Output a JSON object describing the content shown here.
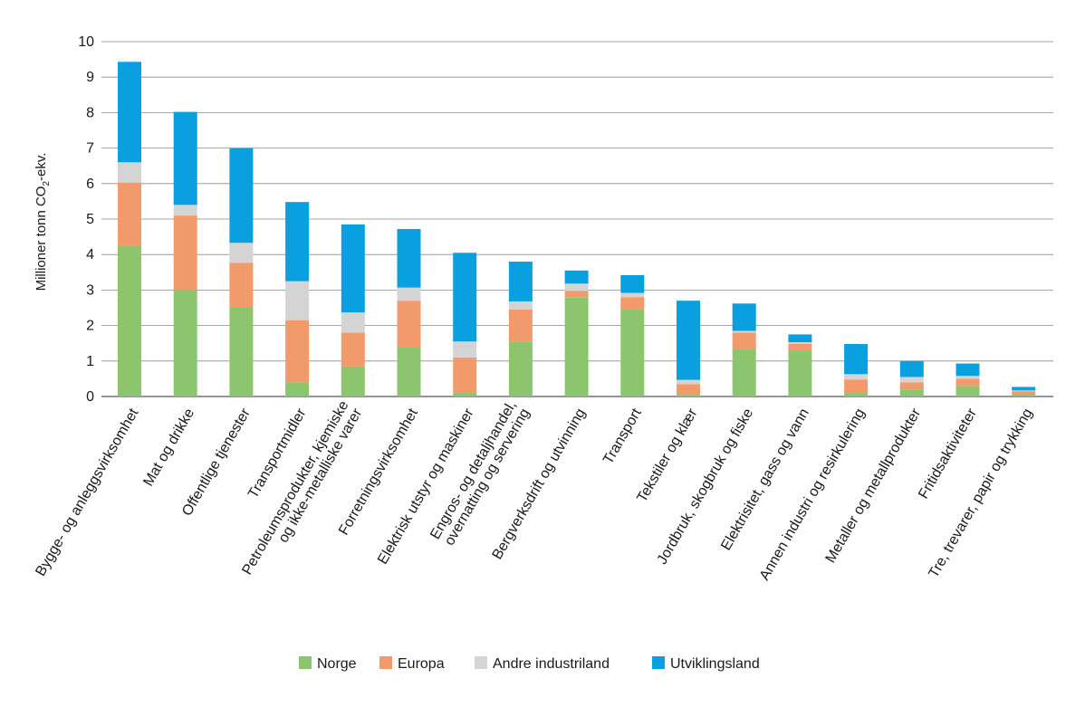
{
  "chart_data": {
    "type": "bar",
    "stacked": true,
    "ylabel_main": "Millioner tonn CO",
    "ylabel_sub": "2",
    "ylabel_tail": "-ekv.",
    "ylim": [
      0,
      10
    ],
    "yticks": [
      "0",
      "1",
      "2",
      "3",
      "4",
      "5",
      "6",
      "7",
      "8",
      "9",
      "10"
    ],
    "grid": true,
    "legend_position": "bottom",
    "categories": [
      [
        "Bygge- og anleggsvirksomhet"
      ],
      [
        "Mat og drikke"
      ],
      [
        "Offentlige tjenester"
      ],
      [
        "Transportmidler"
      ],
      [
        "Petroleumsprodukter, kjemiske",
        "og ikke-metalliske varer"
      ],
      [
        "Forretningsvirksomhet"
      ],
      [
        "Elektrisk utstyr og maskiner"
      ],
      [
        "Engros- og detaljhandel,",
        "overnatting og servering"
      ],
      [
        "Bergverksdrift og utvinning"
      ],
      [
        "Transport"
      ],
      [
        "Tekstiler og klær"
      ],
      [
        "Jordbruk, skogbruk og fiske"
      ],
      [
        "Elektrisitet, gass og vann"
      ],
      [
        "Annen industri og resirkulering"
      ],
      [
        "Metaller og metallprodukter"
      ],
      [
        "Fritidsaktiviteter"
      ],
      [
        "Tre, trevarer, papir og trykking"
      ]
    ],
    "series": [
      {
        "name": "Norge",
        "color": "#8cc56e",
        "values": [
          4.25,
          3.0,
          2.5,
          0.4,
          0.85,
          1.4,
          0.1,
          1.55,
          2.8,
          2.45,
          0.05,
          1.35,
          1.3,
          0.1,
          0.2,
          0.3,
          0.05
        ]
      },
      {
        "name": "Europa",
        "color": "#f39a6d",
        "values": [
          1.78,
          2.1,
          1.27,
          1.75,
          0.95,
          1.3,
          1.0,
          0.9,
          0.18,
          0.35,
          0.3,
          0.45,
          0.18,
          0.38,
          0.2,
          0.2,
          0.1
        ]
      },
      {
        "name": "Andre industriland",
        "color": "#d4d4d4",
        "values": [
          0.57,
          0.3,
          0.56,
          1.1,
          0.57,
          0.37,
          0.45,
          0.23,
          0.2,
          0.12,
          0.12,
          0.05,
          0.05,
          0.15,
          0.15,
          0.08,
          0.02
        ]
      },
      {
        "name": "Utviklingsland",
        "color": "#0aa0e0",
        "values": [
          2.83,
          2.62,
          2.67,
          2.23,
          2.48,
          1.65,
          2.5,
          1.12,
          0.37,
          0.5,
          2.23,
          0.77,
          0.22,
          0.85,
          0.45,
          0.35,
          0.1
        ]
      }
    ]
  }
}
